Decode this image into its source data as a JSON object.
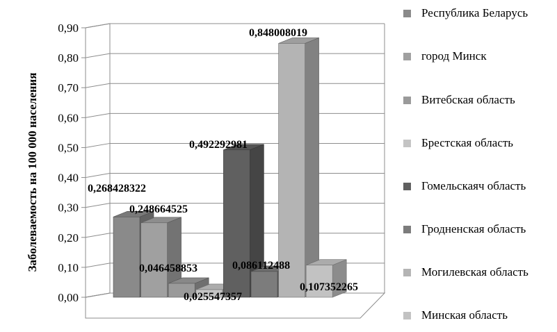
{
  "chart_data": {
    "type": "bar",
    "ylabel": "Заболеваемость на 100 000 населения",
    "ylim": [
      0,
      0.9
    ],
    "yticks": [
      "0,00",
      "0,10",
      "0,20",
      "0,30",
      "0,40",
      "0,50",
      "0,60",
      "0,70",
      "0,80",
      "0,90"
    ],
    "grid": true,
    "legend_position": "right",
    "series": [
      {
        "name": "Республика Беларусь",
        "value": 0.268428322,
        "label": "0,268428322",
        "color": "#8a8a8a"
      },
      {
        "name": "город Минск",
        "value": 0.248664525,
        "label": "0,248664525",
        "color": "#a0a0a0"
      },
      {
        "name": "Витебская область",
        "value": 0.046458853,
        "label": "0,046458853",
        "color": "#9a9a9a"
      },
      {
        "name": "Брестская область",
        "value": 0.025547357,
        "label": "0,025547357",
        "color": "#c4c4c4"
      },
      {
        "name": "Гомельскаяч область",
        "value": 0.492292981,
        "label": "0,492292981",
        "color": "#606060"
      },
      {
        "name": "Гродненская область",
        "value": 0.086112488,
        "label": "0,086112488",
        "color": "#7c7c7c"
      },
      {
        "name": "Могилевская область",
        "value": 0.848008019,
        "label": "0,848008019",
        "color": "#b4b4b4"
      },
      {
        "name": "Минская область",
        "value": 0.107352265,
        "label": "0,107352265",
        "color": "#c2c2c2"
      }
    ]
  }
}
